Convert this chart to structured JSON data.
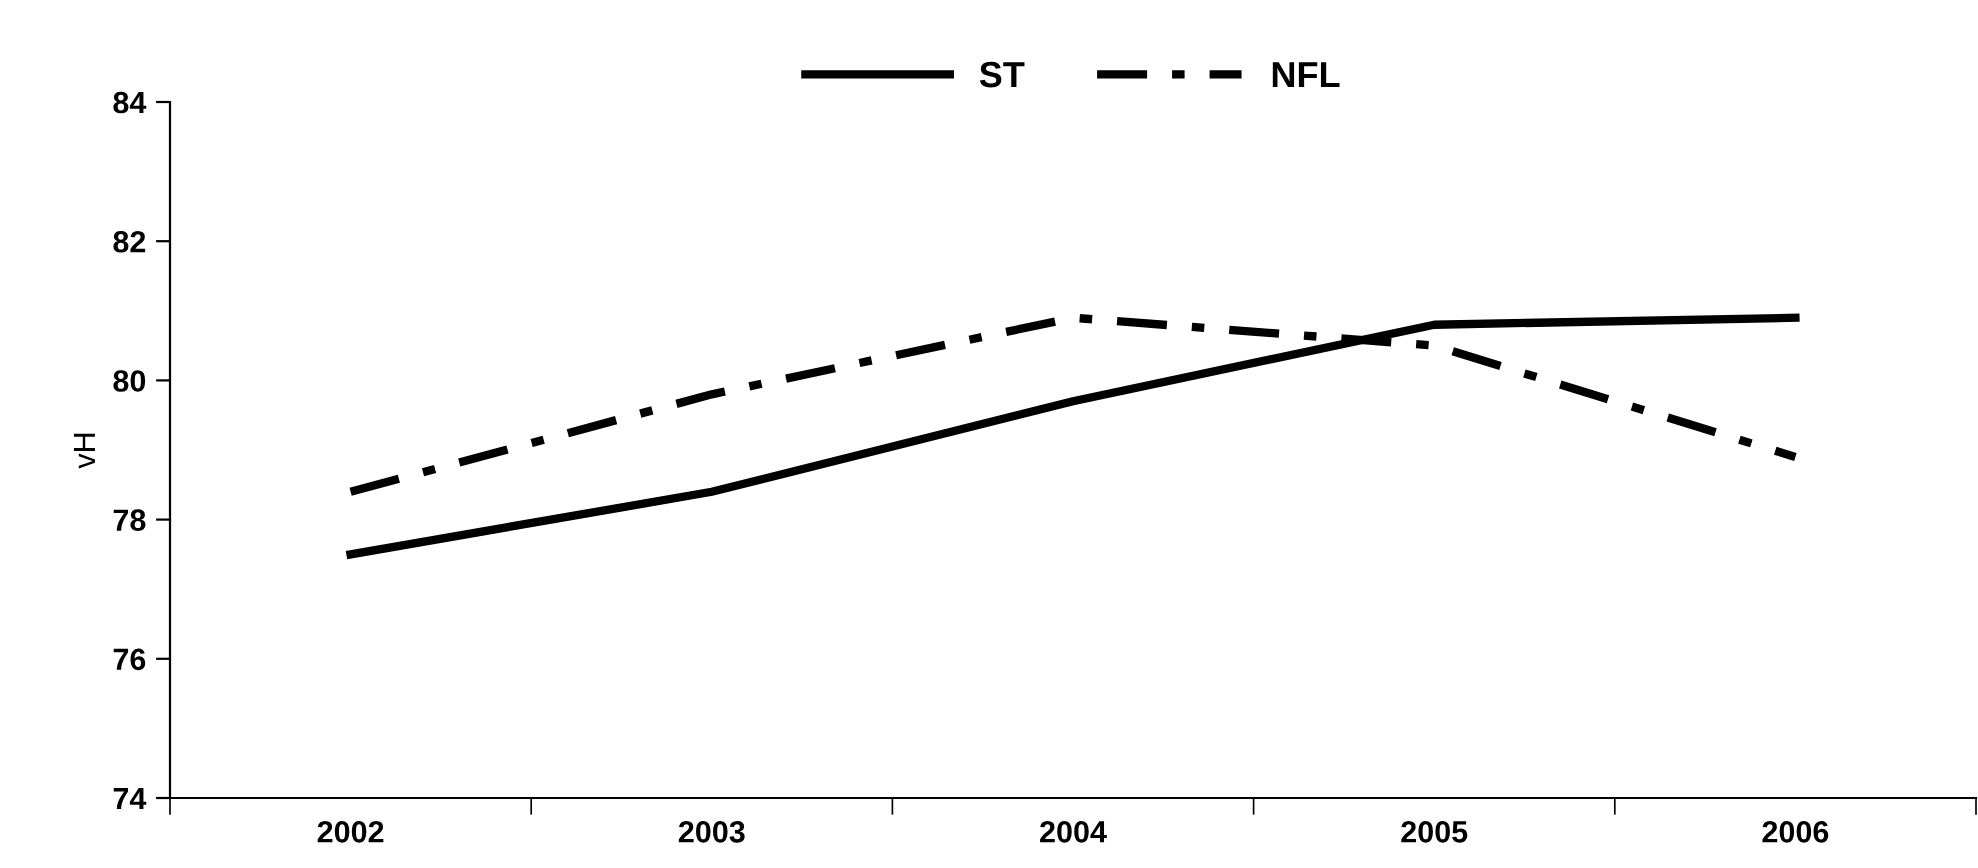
{
  "chart_data": {
    "type": "line",
    "ylabel": "vH",
    "categories": [
      "2002",
      "2003",
      "2004",
      "2005",
      "2006"
    ],
    "series": [
      {
        "name": "ST",
        "color": "#000000",
        "line_style": "solid",
        "values": [
          77.5,
          78.4,
          79.7,
          80.8,
          80.9
        ]
      },
      {
        "name": "NFL",
        "color": "#000000",
        "line_style": "dashed",
        "values": [
          78.4,
          79.8,
          80.9,
          80.5,
          78.9
        ]
      }
    ],
    "ylim": [
      74,
      84
    ],
    "yticks": [
      74,
      76,
      78,
      80,
      82,
      84
    ],
    "grid": false,
    "legend": "top",
    "marker": "none"
  }
}
